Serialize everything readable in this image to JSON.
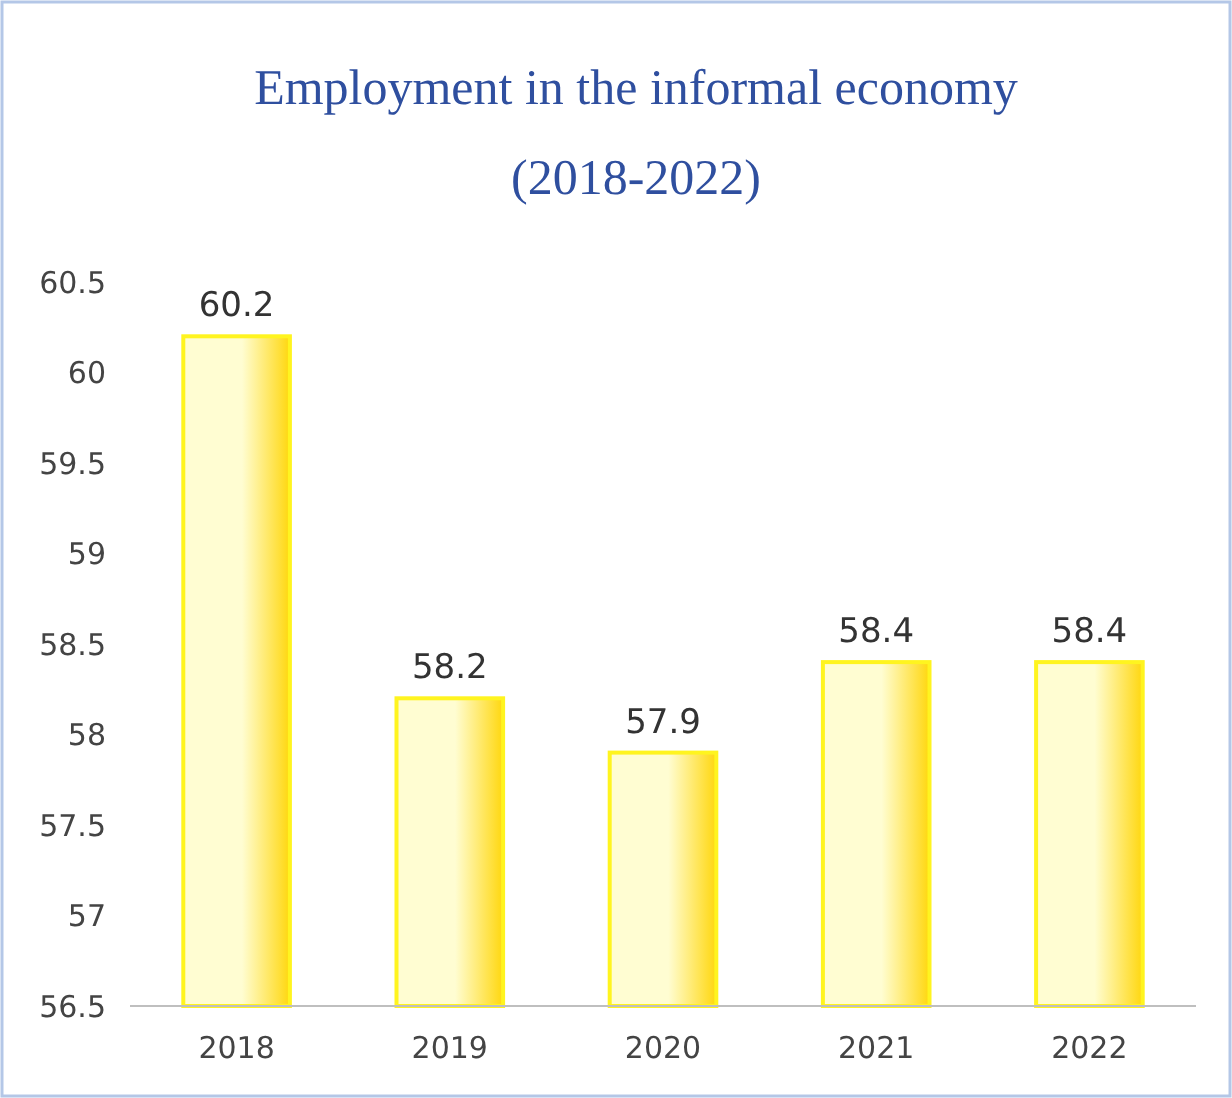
{
  "chart_data": {
    "type": "bar",
    "title": "Employment in the informal economy",
    "subtitle": "(2018-2022)",
    "categories": [
      "2018",
      "2019",
      "2020",
      "2021",
      "2022"
    ],
    "values": [
      60.2,
      58.2,
      57.9,
      58.4,
      58.4
    ],
    "color": "#fff41f",
    "ylim": [
      56.5,
      60.5
    ],
    "yticks": [
      56.5,
      57,
      57.5,
      58,
      58.5,
      59,
      59.5,
      60,
      60.5
    ],
    "data_labels": true
  }
}
